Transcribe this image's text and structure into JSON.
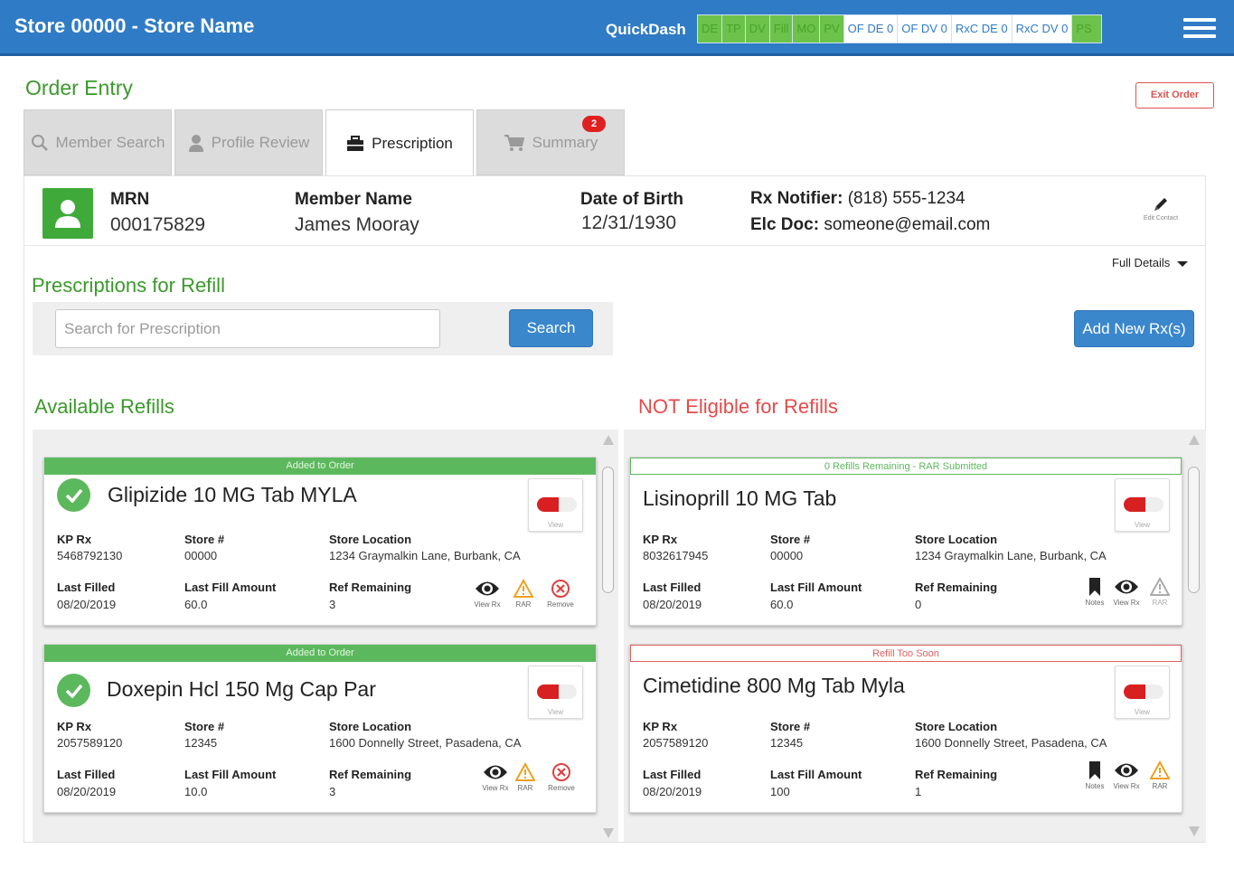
{
  "header": {
    "store_title": "Store 00000 - Store Name",
    "quickdash_label": "QuickDash",
    "quickdash_cells": [
      {
        "label": "DE",
        "status": "green"
      },
      {
        "label": "TP",
        "status": "green"
      },
      {
        "label": "DV",
        "status": "green"
      },
      {
        "label": "Fill",
        "status": "green"
      },
      {
        "label": "MO",
        "status": "green"
      },
      {
        "label": "PV",
        "status": "green"
      },
      {
        "label": "OF DE 0",
        "status": "white"
      },
      {
        "label": "OF DV 0",
        "status": "white"
      },
      {
        "label": "RxC DE 0",
        "status": "white"
      },
      {
        "label": "RxC DV 0",
        "status": "white"
      },
      {
        "label": "PS",
        "status": "green"
      }
    ],
    "menu_icon": "hamburger-icon"
  },
  "page": {
    "title": "Order Entry",
    "exit_label": "Exit Order"
  },
  "tabs": [
    {
      "label": "Member Search",
      "icon": "search-icon",
      "active": false
    },
    {
      "label": "Profile Review",
      "icon": "user-icon",
      "active": false
    },
    {
      "label": "Prescription",
      "icon": "briefcase-icon",
      "active": true
    },
    {
      "label": "Summary",
      "icon": "cart-icon",
      "active": false,
      "badge": "2"
    }
  ],
  "member": {
    "mrn_label": "MRN",
    "mrn": "000175829",
    "name_label": "Member Name",
    "name": "James Mooray",
    "dob_label": "Date of Birth",
    "dob": "12/31/1930",
    "rx_notifier_label": "Rx Notifier:",
    "rx_notifier": "(818) 555-1234",
    "elc_doc_label": "Elc Doc:",
    "elc_doc": "someone@email.com",
    "edit_contact_label": "Edit Contact"
  },
  "refill": {
    "full_details_label": "Full Details",
    "section_title": "Prescriptions for Refill",
    "search_placeholder": "Search for Prescription",
    "search_button": "Search",
    "add_new_button": "Add New Rx(s)",
    "available_title": "Available Refills",
    "not_eligible_title": "NOT Eligible for Refills"
  },
  "labels": {
    "kp_rx": "KP Rx",
    "store": "Store #",
    "store_location": "Store Location",
    "last_filled": "Last Filled",
    "last_fill_amount": "Last Fill Amount",
    "ref_remaining": "Ref Remaining",
    "view": "View",
    "view_rx": "View Rx",
    "rar": "RAR",
    "remove": "Remove",
    "notes": "Notes"
  },
  "available_cards": [
    {
      "banner": "Added to Order",
      "drug": "Glipizide 10 MG Tab MYLA",
      "kp_rx": "5468792130",
      "store": "00000",
      "store_location": "1234 Graymalkin Lane, Burbank, CA",
      "last_filled": "08/20/2019",
      "last_fill_amount": "60.0",
      "ref_remaining": "3"
    },
    {
      "banner": "Added to Order",
      "drug": "Doxepin Hcl 150 Mg Cap Par",
      "kp_rx": "2057589120",
      "store": "12345",
      "store_location": "1600 Donnelly Street, Pasadena, CA",
      "last_filled": "08/20/2019",
      "last_fill_amount": "10.0",
      "ref_remaining": "3"
    }
  ],
  "not_eligible_cards": [
    {
      "banner": "0 Refills Remaining - RAR Submitted",
      "banner_color": "#5cb85c",
      "drug": "Lisinoprill 10 MG Tab",
      "kp_rx": "8032617945",
      "store": "00000",
      "store_location": "1234 Graymalkin Lane, Burbank, CA",
      "last_filled": "08/20/2019",
      "last_fill_amount": "60.0",
      "ref_remaining": "0"
    },
    {
      "banner": "Refill Too Soon",
      "banner_color": "#e06060",
      "drug": "Cimetidine 800 Mg Tab Myla",
      "kp_rx": "2057589120",
      "store": "12345",
      "store_location": "1600 Donnelly Street, Pasadena, CA",
      "last_filled": "08/20/2019",
      "last_fill_amount": "100",
      "ref_remaining": "1"
    }
  ],
  "colors": {
    "header_blue": "#2f7bc6",
    "green": "#3a9a2a",
    "red": "#e64a4a",
    "button_blue": "#3b87cc"
  }
}
